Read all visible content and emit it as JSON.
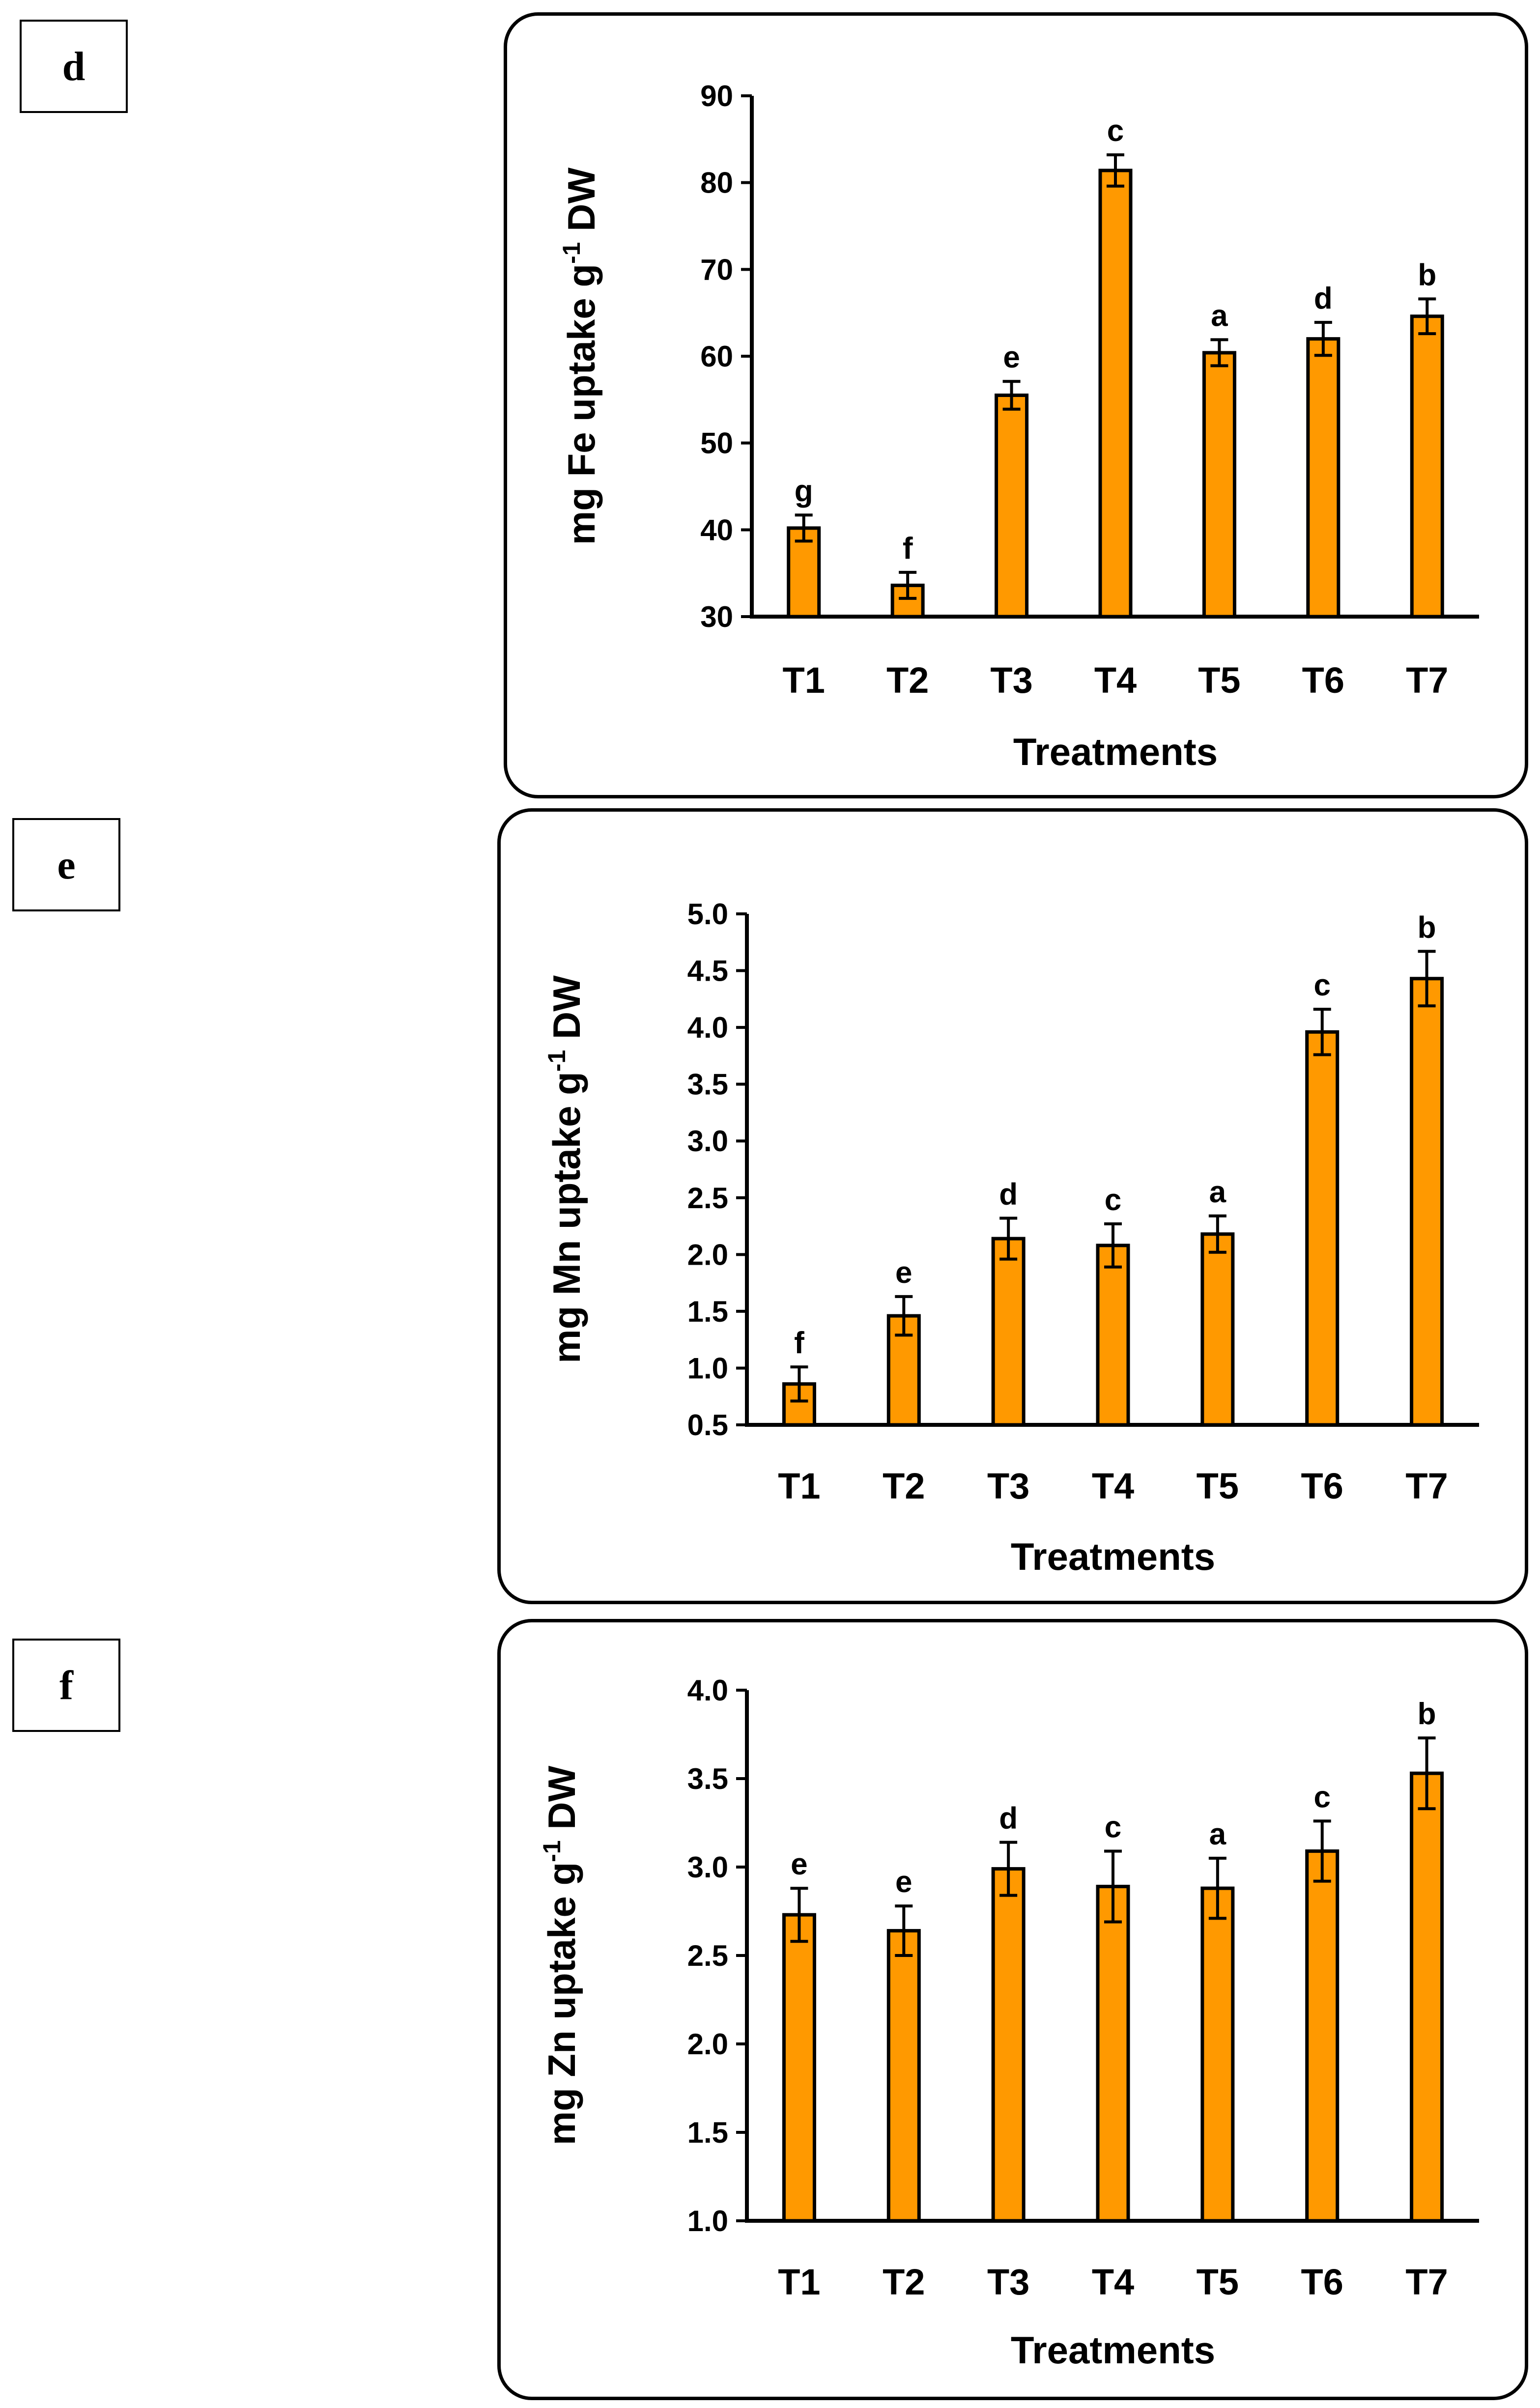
{
  "chart_data": [
    {
      "type": "bar",
      "panel": "d",
      "categories": [
        "T1",
        "T2",
        "T3",
        "T4",
        "T5",
        "T6",
        "T7"
      ],
      "values": [
        40.2,
        33.6,
        55.5,
        81.4,
        60.4,
        62.0,
        64.6
      ],
      "errors": [
        1.5,
        1.5,
        1.6,
        1.8,
        1.5,
        1.9,
        2.0
      ],
      "labels": [
        "g",
        "f",
        "e",
        "c",
        "a",
        "d",
        "b"
      ],
      "title": "",
      "xlabel": "Treatments",
      "ylabel_main": "mg Fe uptake g",
      "ylabel_sup": "-1",
      "ylabel_tail": " DW",
      "ylim": [
        30,
        90
      ],
      "yticks": [
        "30",
        "40",
        "50",
        "60",
        "70",
        "80",
        "90"
      ],
      "bar_color": "#FF9900"
    },
    {
      "type": "bar",
      "panel": "e",
      "categories": [
        "T1",
        "T2",
        "T3",
        "T4",
        "T5",
        "T6",
        "T7"
      ],
      "values": [
        0.86,
        1.46,
        2.14,
        2.08,
        2.18,
        3.96,
        4.43
      ],
      "errors": [
        0.15,
        0.17,
        0.18,
        0.19,
        0.16,
        0.2,
        0.24
      ],
      "labels": [
        "f",
        "e",
        "d",
        "c",
        "a",
        "c",
        "b"
      ],
      "title": "",
      "xlabel": "Treatments",
      "ylabel_main": "mg Mn uptake g",
      "ylabel_sup": "-1",
      "ylabel_tail": " DW",
      "ylim": [
        0.5,
        5.0
      ],
      "yticks": [
        "0.5",
        "1.0",
        "1.5",
        "2.0",
        "2.5",
        "3.0",
        "3.5",
        "4.0",
        "4.5",
        "5.0"
      ],
      "bar_color": "#FF9900"
    },
    {
      "type": "bar",
      "panel": "f",
      "categories": [
        "T1",
        "T2",
        "T3",
        "T4",
        "T5",
        "T6",
        "T7"
      ],
      "values": [
        2.73,
        2.64,
        2.99,
        2.89,
        2.88,
        3.09,
        3.53
      ],
      "errors": [
        0.15,
        0.14,
        0.15,
        0.2,
        0.17,
        0.17,
        0.2
      ],
      "labels": [
        "e",
        "e",
        "d",
        "c",
        "a",
        "c",
        "b"
      ],
      "title": "",
      "xlabel": "Treatments",
      "ylabel_main": "mg Zn uptake g",
      "ylabel_sup": "-1",
      "ylabel_tail": " DW",
      "ylim": [
        1.0,
        4.0
      ],
      "yticks": [
        "1.0",
        "1.5",
        "2.0",
        "2.5",
        "3.0",
        "3.5",
        "4.0"
      ],
      "bar_color": "#FF9900"
    }
  ]
}
